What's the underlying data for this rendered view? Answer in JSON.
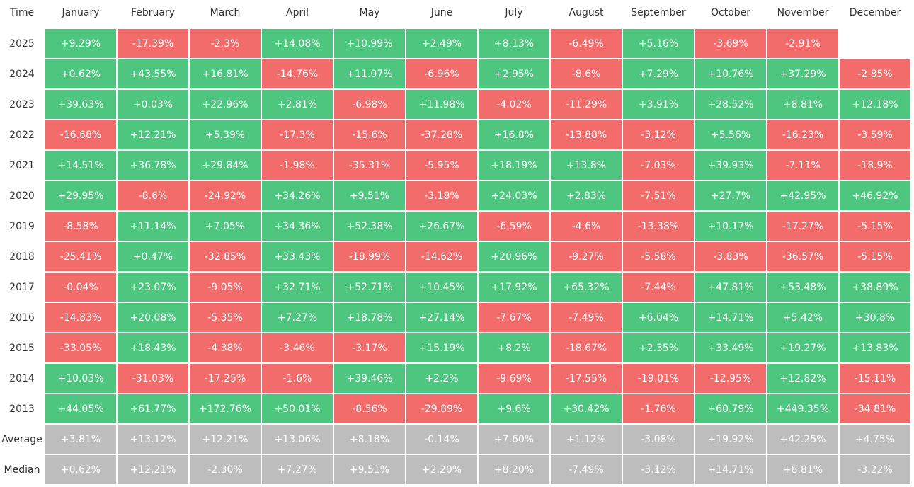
{
  "table": {
    "header": [
      "Time",
      "January",
      "February",
      "March",
      "April",
      "May",
      "June",
      "July",
      "August",
      "September",
      "October",
      "November",
      "December"
    ],
    "rows": [
      {
        "label": "2025",
        "cells": [
          "+9.29%",
          "-17.39%",
          "-2.3%",
          "+14.08%",
          "+10.99%",
          "+2.49%",
          "+8.13%",
          "-6.49%",
          "+5.16%",
          "-3.69%",
          "-2.91%"
        ]
      },
      {
        "label": "2024",
        "cells": [
          "+0.62%",
          "+43.55%",
          "+16.81%",
          "-14.76%",
          "+11.07%",
          "-6.96%",
          "+2.95%",
          "-8.6%",
          "+7.29%",
          "+10.76%",
          "+37.29%",
          "-2.85%"
        ]
      },
      {
        "label": "2023",
        "cells": [
          "+39.63%",
          "+0.03%",
          "+22.96%",
          "+2.81%",
          "-6.98%",
          "+11.98%",
          "-4.02%",
          "-11.29%",
          "+3.91%",
          "+28.52%",
          "+8.81%",
          "+12.18%"
        ]
      },
      {
        "label": "2022",
        "cells": [
          "-16.68%",
          "+12.21%",
          "+5.39%",
          "-17.3%",
          "-15.6%",
          "-37.28%",
          "+16.8%",
          "-13.88%",
          "-3.12%",
          "+5.56%",
          "-16.23%",
          "-3.59%"
        ]
      },
      {
        "label": "2021",
        "cells": [
          "+14.51%",
          "+36.78%",
          "+29.84%",
          "-1.98%",
          "-35.31%",
          "-5.95%",
          "+18.19%",
          "+13.8%",
          "-7.03%",
          "+39.93%",
          "-7.11%",
          "-18.9%"
        ]
      },
      {
        "label": "2020",
        "cells": [
          "+29.95%",
          "-8.6%",
          "-24.92%",
          "+34.26%",
          "+9.51%",
          "-3.18%",
          "+24.03%",
          "+2.83%",
          "-7.51%",
          "+27.7%",
          "+42.95%",
          "+46.92%"
        ]
      },
      {
        "label": "2019",
        "cells": [
          "-8.58%",
          "+11.14%",
          "+7.05%",
          "+34.36%",
          "+52.38%",
          "+26.67%",
          "-6.59%",
          "-4.6%",
          "-13.38%",
          "+10.17%",
          "-17.27%",
          "-5.15%"
        ]
      },
      {
        "label": "2018",
        "cells": [
          "-25.41%",
          "+0.47%",
          "-32.85%",
          "+33.43%",
          "-18.99%",
          "-14.62%",
          "+20.96%",
          "-9.27%",
          "-5.58%",
          "-3.83%",
          "-36.57%",
          "-5.15%"
        ]
      },
      {
        "label": "2017",
        "cells": [
          "-0.04%",
          "+23.07%",
          "-9.05%",
          "+32.71%",
          "+52.71%",
          "+10.45%",
          "+17.92%",
          "+65.32%",
          "-7.44%",
          "+47.81%",
          "+53.48%",
          "+38.89%"
        ]
      },
      {
        "label": "2016",
        "cells": [
          "-14.83%",
          "+20.08%",
          "-5.35%",
          "+7.27%",
          "+18.78%",
          "+27.14%",
          "-7.67%",
          "-7.49%",
          "+6.04%",
          "+14.71%",
          "+5.42%",
          "+30.8%"
        ]
      },
      {
        "label": "2015",
        "cells": [
          "-33.05%",
          "+18.43%",
          "-4.38%",
          "-3.46%",
          "-3.17%",
          "+15.19%",
          "+8.2%",
          "-18.67%",
          "+2.35%",
          "+33.49%",
          "+19.27%",
          "+13.83%"
        ]
      },
      {
        "label": "2014",
        "cells": [
          "+10.03%",
          "-31.03%",
          "-17.25%",
          "-1.6%",
          "+39.46%",
          "+2.2%",
          "-9.69%",
          "-17.55%",
          "-19.01%",
          "-12.95%",
          "+12.82%",
          "-15.11%"
        ]
      },
      {
        "label": "2013",
        "cells": [
          "+44.05%",
          "+61.77%",
          "+172.76%",
          "+50.01%",
          "-8.56%",
          "-29.89%",
          "+9.6%",
          "+30.42%",
          "-1.76%",
          "+60.79%",
          "+449.35%",
          "-34.81%"
        ]
      }
    ],
    "summary_rows": [
      {
        "label": "Average",
        "cells": [
          "+3.81%",
          "+13.12%",
          "+12.21%",
          "+13.06%",
          "+8.18%",
          "-0.14%",
          "+7.60%",
          "+1.12%",
          "-3.08%",
          "+19.92%",
          "+42.25%",
          "+4.75%"
        ]
      },
      {
        "label": "Median",
        "cells": [
          "+0.62%",
          "+12.21%",
          "-2.30%",
          "+7.27%",
          "+9.51%",
          "+2.20%",
          "+8.20%",
          "-7.49%",
          "-3.12%",
          "+14.71%",
          "+8.81%",
          "-3.22%"
        ]
      }
    ]
  }
}
